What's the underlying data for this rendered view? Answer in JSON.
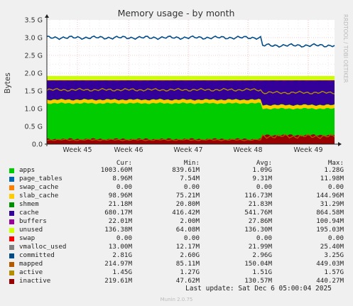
{
  "chart_data": {
    "type": "area",
    "title": "Memory usage - by month",
    "ylabel": "Bytes",
    "watermark": "RRDTOOL / TOBI OETIKER",
    "ylim": [
      0,
      3.5
    ],
    "yticks": [
      "0.0",
      "0.5 G",
      "1.0 G",
      "1.5 G",
      "2.0 G",
      "2.5 G",
      "3.0 G",
      "3.5 G"
    ],
    "categories": [
      "Week 45",
      "Week 46",
      "Week 47",
      "Week 48",
      "Week 49"
    ],
    "grid": true,
    "series_approx_before_after_week48": {
      "inactive_top": [
        0.14,
        0.25
      ],
      "green_top": [
        1.15,
        1.0
      ],
      "active_line": [
        1.53,
        1.45
      ],
      "cache_top": [
        1.78,
        1.78
      ],
      "unused_top": [
        1.92,
        1.92
      ],
      "committed_line": [
        3.0,
        2.78
      ]
    }
  },
  "legend": {
    "headers": {
      "cur": "Cur:",
      "min": "Min:",
      "avg": "Avg:",
      "max": "Max:"
    },
    "rows": [
      {
        "name": "apps",
        "color": "#00cc00",
        "cur": "1003.60M",
        "min": "839.61M",
        "avg": "1.09G",
        "max": "1.28G"
      },
      {
        "name": "page_tables",
        "color": "#0066b3",
        "cur": "8.96M",
        "min": "7.54M",
        "avg": "9.31M",
        "max": "11.98M"
      },
      {
        "name": "swap_cache",
        "color": "#ff8000",
        "cur": "0.00",
        "min": "0.00",
        "avg": "0.00",
        "max": "0.00"
      },
      {
        "name": "slab_cache",
        "color": "#ffcc00",
        "cur": "98.96M",
        "min": "75.21M",
        "avg": "116.73M",
        "max": "144.96M"
      },
      {
        "name": "shmem",
        "color": "#008f00",
        "cur": "21.18M",
        "min": "20.80M",
        "avg": "21.83M",
        "max": "31.29M"
      },
      {
        "name": "cache",
        "color": "#330099",
        "cur": "680.17M",
        "min": "416.42M",
        "avg": "541.76M",
        "max": "864.58M"
      },
      {
        "name": "buffers",
        "color": "#990099",
        "cur": "22.01M",
        "min": "2.00M",
        "avg": "27.86M",
        "max": "100.94M"
      },
      {
        "name": "unused",
        "color": "#ccff00",
        "cur": "136.38M",
        "min": "64.08M",
        "avg": "136.30M",
        "max": "195.03M"
      },
      {
        "name": "swap",
        "color": "#ff0000",
        "cur": "0.00",
        "min": "0.00",
        "avg": "0.00",
        "max": "0.00"
      },
      {
        "name": "vmalloc_used",
        "color": "#808080",
        "cur": "13.00M",
        "min": "12.17M",
        "avg": "21.99M",
        "max": "25.40M"
      },
      {
        "name": "committed",
        "color": "#004d8a",
        "cur": "2.81G",
        "min": "2.60G",
        "avg": "2.96G",
        "max": "3.25G"
      },
      {
        "name": "mapped",
        "color": "#b35a00",
        "cur": "214.97M",
        "min": "85.11M",
        "avg": "150.04M",
        "max": "449.03M"
      },
      {
        "name": "active",
        "color": "#b38f00",
        "cur": "1.45G",
        "min": "1.27G",
        "avg": "1.51G",
        "max": "1.57G"
      },
      {
        "name": "inactive",
        "color": "#990000",
        "cur": "219.61M",
        "min": "47.62M",
        "avg": "130.57M",
        "max": "440.27M"
      }
    ]
  },
  "footer": {
    "last_update": "Last update: Sat Dec  6 05:00:04 2025",
    "munin": "Munin 2.0.75"
  }
}
